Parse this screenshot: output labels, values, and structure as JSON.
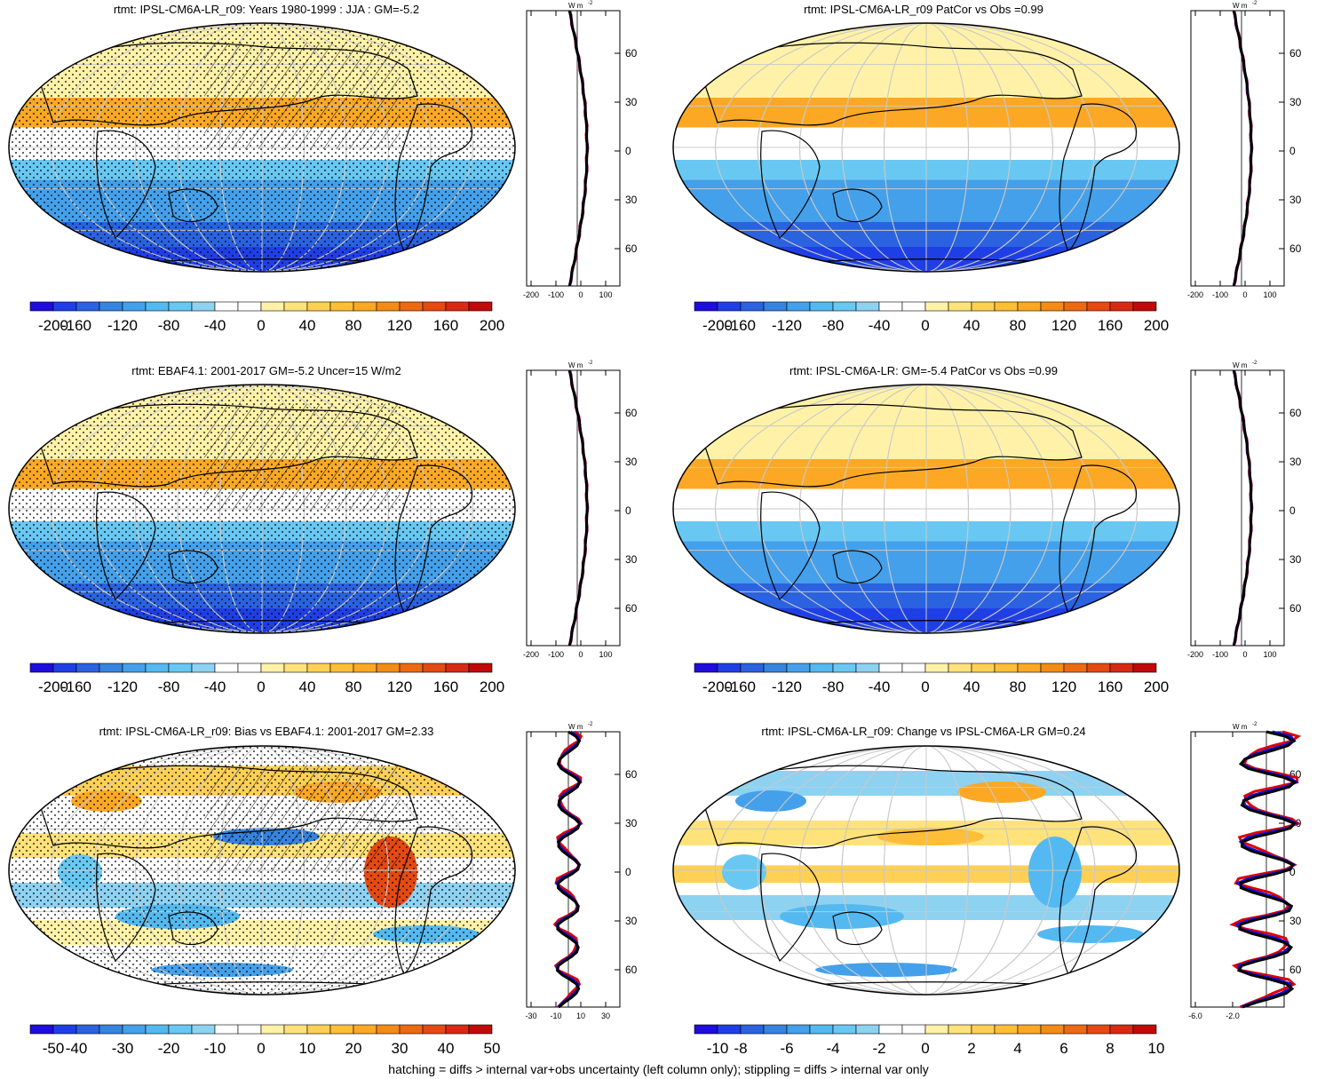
{
  "footnote": "hatching = diffs > internal var+obs uncertainty (left column only); stippling = diffs > internal var only",
  "colors": {
    "scale": [
      "#1e0ddc",
      "#1f3fe6",
      "#2a62e0",
      "#3584e0",
      "#44a0ea",
      "#53b9f0",
      "#68c8f2",
      "#8ed2f2",
      "#ffffff",
      "#ffffff",
      "#fff2a8",
      "#ffe27a",
      "#ffd053",
      "#ffbe38",
      "#fca824",
      "#f48b17",
      "#ec6a12",
      "#e44a12",
      "#d82a12",
      "#c00a0a"
    ],
    "ocean_grid": "#c8c8c8"
  },
  "latitude_labels": [
    "60N",
    "30N",
    "0",
    "30S",
    "60S"
  ],
  "profile_unit": "W m",
  "profile_unit_sup": "-2",
  "panels": [
    {
      "id": "model-jja",
      "title": "rtmt: IPSL-CM6A-LR_r09: Years 1980-1999 : JJA : GM=-5.2",
      "colorbar_labels": [
        "-200",
        "-160",
        "-120",
        "-80",
        "-40",
        "0",
        "40",
        "80",
        "120",
        "160",
        "200"
      ],
      "profile_ticks": [
        "-200",
        "-100",
        "0",
        "100"
      ],
      "hatched": true
    },
    {
      "id": "model-patcor",
      "title": "rtmt: IPSL-CM6A-LR_r09 PatCor vs Obs =0.99",
      "colorbar_labels": [
        "-200",
        "-160",
        "-120",
        "-80",
        "-40",
        "0",
        "40",
        "80",
        "120",
        "160",
        "200"
      ],
      "profile_ticks": [
        "-200",
        "-100",
        "0",
        "100"
      ],
      "hatched": false
    },
    {
      "id": "obs",
      "title": "rtmt: EBAF4.1: 2001-2017 GM=-5.2 Uncer=15 W/m2",
      "colorbar_labels": [
        "-200",
        "-160",
        "-120",
        "-80",
        "-40",
        "0",
        "40",
        "80",
        "120",
        "160",
        "200"
      ],
      "profile_ticks": [
        "-200",
        "-100",
        "0",
        "100"
      ],
      "hatched": true
    },
    {
      "id": "ensemble",
      "title": "rtmt: IPSL-CM6A-LR: GM=-5.4 PatCor vs Obs =0.99",
      "colorbar_labels": [
        "-200",
        "-160",
        "-120",
        "-80",
        "-40",
        "0",
        "40",
        "80",
        "120",
        "160",
        "200"
      ],
      "profile_ticks": [
        "-200",
        "-100",
        "0",
        "100"
      ],
      "hatched": false
    },
    {
      "id": "bias",
      "title": "rtmt: IPSL-CM6A-LR_r09: Bias vs EBAF4.1: 2001-2017 GM=2.33",
      "colorbar_labels": [
        "-50",
        "-40",
        "-30",
        "-20",
        "-10",
        "0",
        "10",
        "20",
        "30",
        "40",
        "50"
      ],
      "profile_ticks": [
        "-30",
        "-10",
        "10",
        "30"
      ],
      "hatched": true
    },
    {
      "id": "change",
      "title": "rtmt: IPSL-CM6A-LR_r09: Change vs IPSL-CM6A-LR GM=0.24",
      "colorbar_labels": [
        "-10",
        "-8",
        "-6",
        "-4",
        "-2",
        "0",
        "2",
        "4",
        "6",
        "8",
        "10"
      ],
      "profile_ticks": [
        "-6.0",
        "-2.0"
      ],
      "hatched": false
    }
  ]
}
